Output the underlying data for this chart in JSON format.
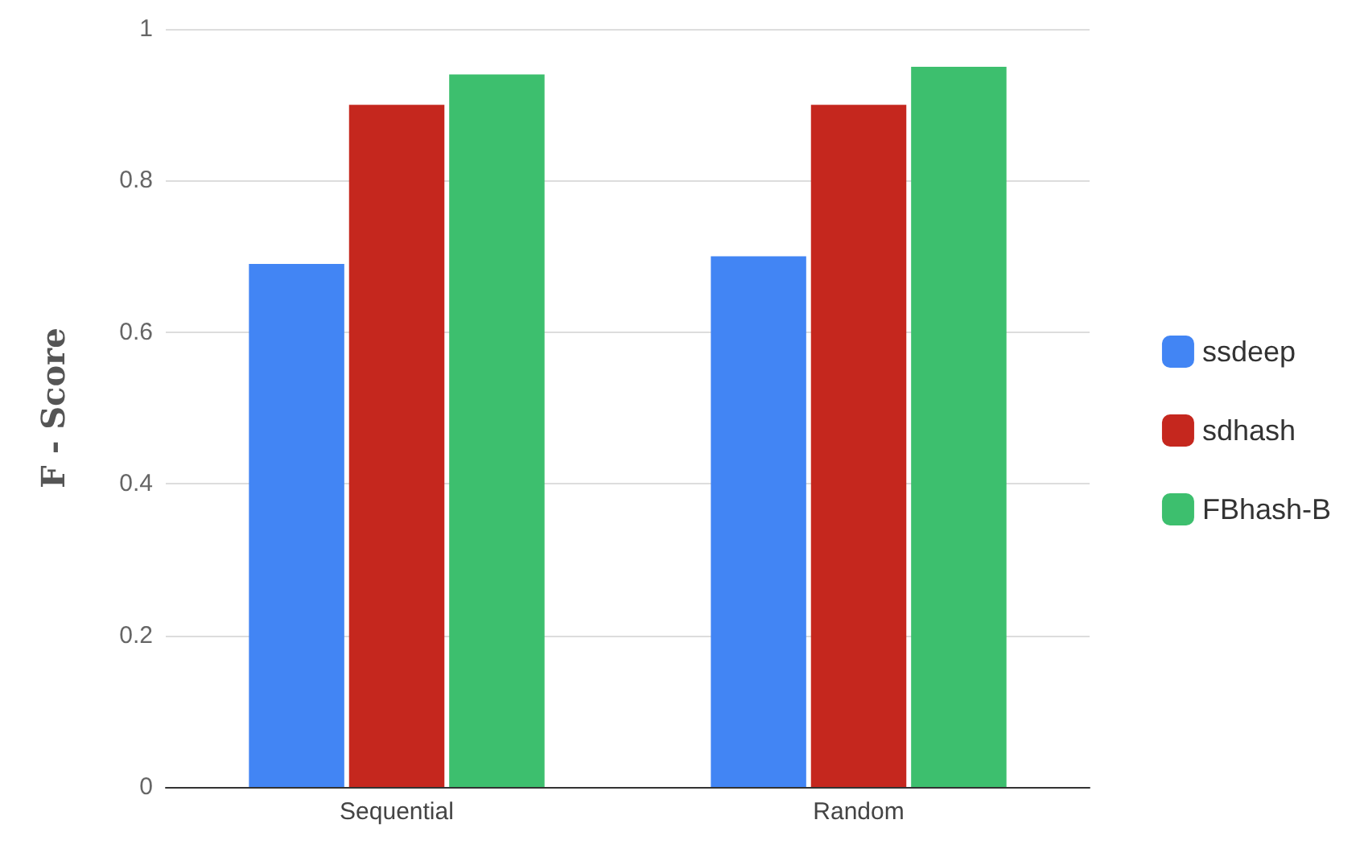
{
  "chart_data": {
    "type": "bar",
    "ylabel": "F - Score",
    "categories": [
      "Sequential",
      "Random"
    ],
    "series": [
      {
        "name": "ssdeep",
        "color": "#4285f4",
        "values": [
          0.69,
          0.7
        ]
      },
      {
        "name": "sdhash",
        "color": "#c5271e",
        "values": [
          0.9,
          0.9
        ]
      },
      {
        "name": "FBhash-B",
        "color": "#3dbf6e",
        "values": [
          0.94,
          0.95
        ]
      }
    ],
    "ylim": [
      0,
      1
    ],
    "yticks": [
      0,
      0.2,
      0.4,
      0.6,
      0.8,
      1
    ],
    "grid": "y",
    "legend": "right"
  }
}
